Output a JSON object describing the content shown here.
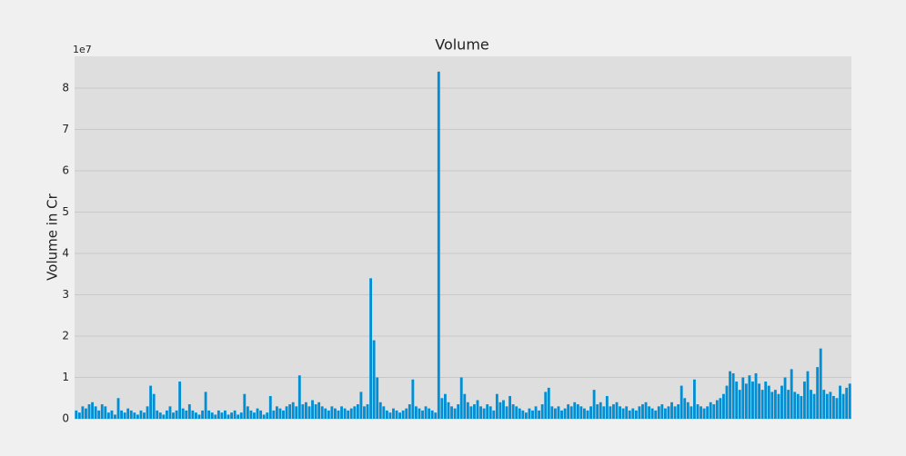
{
  "chart_data": {
    "type": "bar",
    "title": "Volume",
    "y_label": "Volume in Cr",
    "y_offset_label": "1e7",
    "color": "#008fd5",
    "ylim": [
      0,
      8.77
    ],
    "yticks": [
      0,
      1,
      2,
      3,
      4,
      5,
      6,
      7,
      8
    ],
    "grid": true,
    "values": [
      0.2,
      0.15,
      0.3,
      0.25,
      0.35,
      0.4,
      0.3,
      0.2,
      0.35,
      0.3,
      0.15,
      0.2,
      0.1,
      0.5,
      0.2,
      0.15,
      0.25,
      0.2,
      0.15,
      0.1,
      0.2,
      0.15,
      0.3,
      0.8,
      0.6,
      0.2,
      0.15,
      0.1,
      0.2,
      0.3,
      0.15,
      0.2,
      0.9,
      0.25,
      0.2,
      0.35,
      0.2,
      0.15,
      0.1,
      0.2,
      0.65,
      0.2,
      0.15,
      0.1,
      0.2,
      0.15,
      0.2,
      0.1,
      0.15,
      0.2,
      0.1,
      0.15,
      0.6,
      0.3,
      0.2,
      0.15,
      0.25,
      0.2,
      0.1,
      0.15,
      0.55,
      0.2,
      0.3,
      0.25,
      0.2,
      0.3,
      0.35,
      0.4,
      0.3,
      1.05,
      0.35,
      0.4,
      0.3,
      0.45,
      0.35,
      0.4,
      0.3,
      0.25,
      0.2,
      0.3,
      0.25,
      0.2,
      0.3,
      0.25,
      0.2,
      0.25,
      0.3,
      0.35,
      0.65,
      0.3,
      0.35,
      3.4,
      1.9,
      1.0,
      0.4,
      0.3,
      0.2,
      0.15,
      0.25,
      0.2,
      0.15,
      0.2,
      0.25,
      0.35,
      0.95,
      0.3,
      0.25,
      0.2,
      0.3,
      0.25,
      0.2,
      0.15,
      8.4,
      0.5,
      0.6,
      0.4,
      0.3,
      0.25,
      0.35,
      1.0,
      0.6,
      0.4,
      0.3,
      0.35,
      0.45,
      0.3,
      0.25,
      0.35,
      0.3,
      0.2,
      0.6,
      0.4,
      0.45,
      0.3,
      0.55,
      0.35,
      0.3,
      0.25,
      0.2,
      0.15,
      0.25,
      0.2,
      0.3,
      0.2,
      0.35,
      0.65,
      0.75,
      0.3,
      0.25,
      0.3,
      0.2,
      0.25,
      0.35,
      0.3,
      0.4,
      0.35,
      0.3,
      0.25,
      0.2,
      0.3,
      0.7,
      0.35,
      0.4,
      0.3,
      0.55,
      0.3,
      0.35,
      0.4,
      0.3,
      0.25,
      0.3,
      0.2,
      0.25,
      0.2,
      0.3,
      0.35,
      0.4,
      0.3,
      0.25,
      0.2,
      0.3,
      0.35,
      0.25,
      0.3,
      0.4,
      0.3,
      0.35,
      0.8,
      0.5,
      0.4,
      0.3,
      0.95,
      0.35,
      0.3,
      0.25,
      0.3,
      0.4,
      0.35,
      0.45,
      0.5,
      0.6,
      0.8,
      1.15,
      1.1,
      0.9,
      0.7,
      1.0,
      0.85,
      1.05,
      0.9,
      1.1,
      0.85,
      0.7,
      0.9,
      0.8,
      0.65,
      0.7,
      0.6,
      0.8,
      1.0,
      0.7,
      1.2,
      0.65,
      0.6,
      0.55,
      0.9,
      1.15,
      0.7,
      0.6,
      1.25,
      1.7,
      0.7,
      0.6,
      0.65,
      0.55,
      0.5,
      0.8,
      0.6,
      0.75,
      0.85
    ]
  }
}
